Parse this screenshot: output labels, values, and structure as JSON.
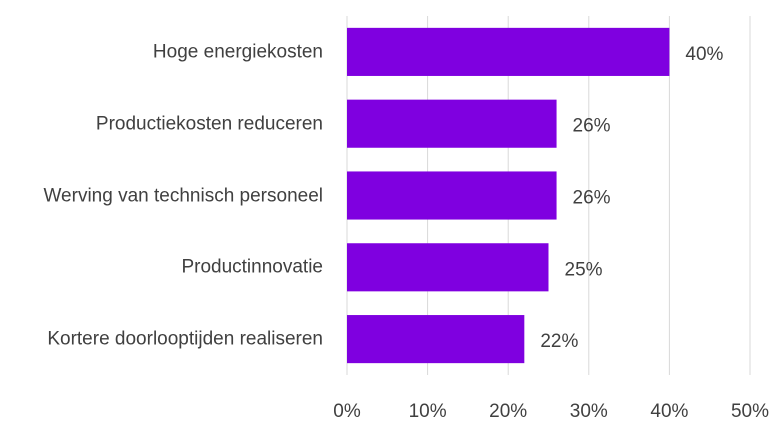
{
  "chart_data": {
    "type": "bar",
    "orientation": "horizontal",
    "categories": [
      "Hoge energiekosten",
      "Productiekosten reduceren",
      "Werving van technisch personeel",
      "Productinnovatie",
      "Kortere doorlooptijden realiseren"
    ],
    "values": [
      40,
      26,
      26,
      25,
      22
    ],
    "value_labels": [
      "40%",
      "26%",
      "26%",
      "25%",
      "22%"
    ],
    "color": "#7f00e0",
    "xlim": [
      0,
      50
    ],
    "xticks": [
      {
        "value": 0,
        "label": "0%"
      },
      {
        "value": 10,
        "label": "10%"
      },
      {
        "value": 20,
        "label": "20%"
      },
      {
        "value": 30,
        "label": "30%"
      },
      {
        "value": 40,
        "label": "40%"
      },
      {
        "value": 50,
        "label": "50%"
      }
    ],
    "grid": true
  }
}
